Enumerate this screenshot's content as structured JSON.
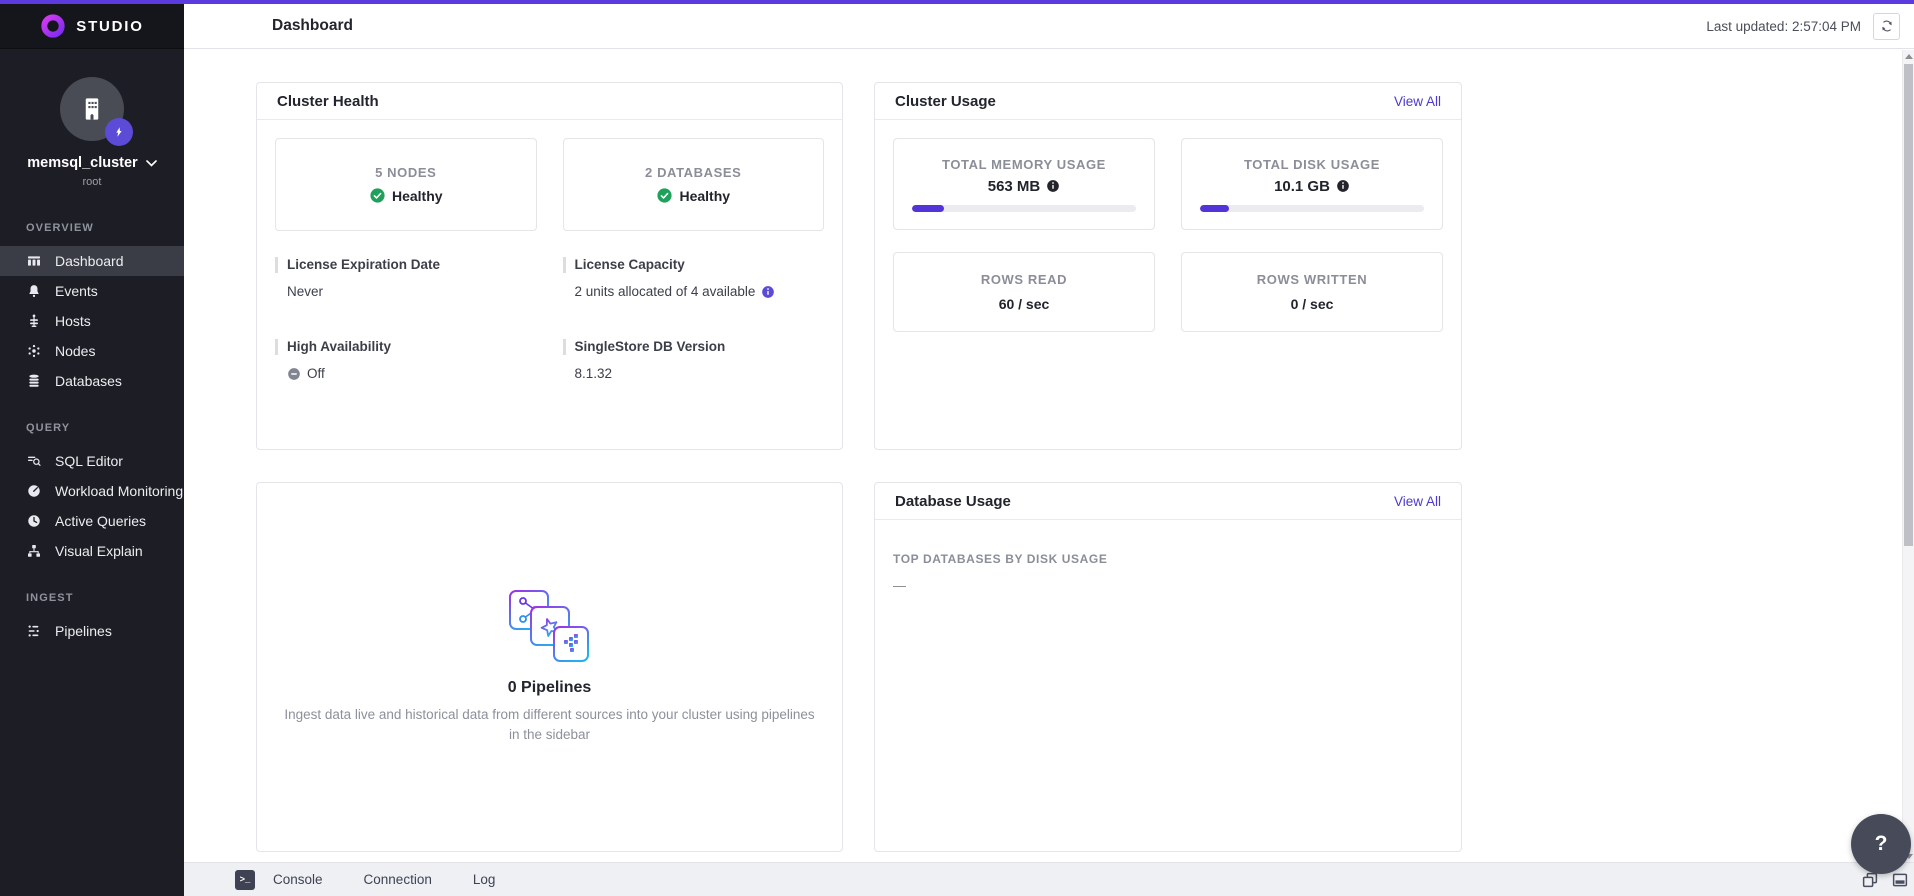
{
  "brand": {
    "name": "STUDIO"
  },
  "header": {
    "title": "Dashboard",
    "last_updated": "Last updated: 2:57:04 PM"
  },
  "sidebar": {
    "cluster_name": "memsql_cluster",
    "cluster_user": "root",
    "sections": [
      {
        "label": "OVERVIEW",
        "items": [
          {
            "label": "Dashboard"
          },
          {
            "label": "Events"
          },
          {
            "label": "Hosts"
          },
          {
            "label": "Nodes"
          },
          {
            "label": "Databases"
          }
        ]
      },
      {
        "label": "QUERY",
        "items": [
          {
            "label": "SQL Editor"
          },
          {
            "label": "Workload Monitoring"
          },
          {
            "label": "Active Queries"
          },
          {
            "label": "Visual Explain"
          }
        ]
      },
      {
        "label": "INGEST",
        "items": [
          {
            "label": "Pipelines"
          }
        ]
      }
    ]
  },
  "cluster_health": {
    "title": "Cluster Health",
    "stats": [
      {
        "label": "5 NODES",
        "status": "Healthy"
      },
      {
        "label": "2 DATABASES",
        "status": "Healthy"
      }
    ],
    "details": [
      {
        "label": "License Expiration Date",
        "value": "Never"
      },
      {
        "label": "License Capacity",
        "value": "2 units allocated of 4 available"
      },
      {
        "label": "High Availability",
        "value": "Off"
      },
      {
        "label": "SingleStore DB Version",
        "value": "8.1.32"
      }
    ]
  },
  "cluster_usage": {
    "title": "Cluster Usage",
    "view_all_label": "View All",
    "gauges": [
      {
        "label": "TOTAL MEMORY USAGE",
        "value": "563 MB",
        "percent": 14
      },
      {
        "label": "TOTAL DISK USAGE",
        "value": "10.1 GB",
        "percent": 13
      }
    ],
    "rates": [
      {
        "label": "ROWS READ",
        "value": "60 / sec"
      },
      {
        "label": "ROWS WRITTEN",
        "value": "0 / sec"
      }
    ]
  },
  "pipelines_empty": {
    "title": "0 Pipelines",
    "description": "Ingest data live and historical data from different sources into your cluster using pipelines in the sidebar"
  },
  "database_usage": {
    "title": "Database Usage",
    "view_all_label": "View All",
    "list_label": "TOP DATABASES BY DISK USAGE",
    "empty_value": "—"
  },
  "bottom_bar": {
    "tabs": [
      {
        "label": "Console"
      },
      {
        "label": "Connection"
      },
      {
        "label": "Log"
      }
    ]
  },
  "help": {
    "label": "?"
  },
  "colors": {
    "accent": "#5234d8",
    "healthy": "#1fa15b",
    "link": "#4b38d3",
    "top_strip": "#5b3adf"
  }
}
